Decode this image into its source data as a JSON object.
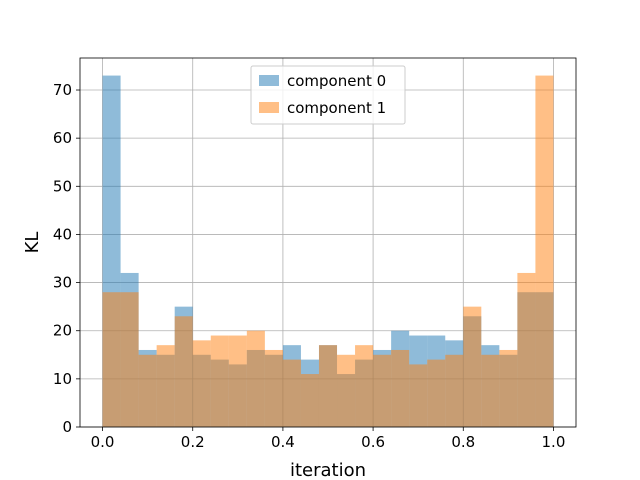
{
  "chart_data": {
    "type": "bar",
    "histogram": true,
    "bin_edges": [
      0.0,
      0.04,
      0.08,
      0.12,
      0.16,
      0.2,
      0.24,
      0.28,
      0.32,
      0.36,
      0.4,
      0.44,
      0.48,
      0.52,
      0.56,
      0.6,
      0.64,
      0.68,
      0.72,
      0.76,
      0.8,
      0.84,
      0.88,
      0.92,
      0.96,
      1.0
    ],
    "series": [
      {
        "name": "component 0",
        "color": "#1f77b4",
        "opacity": 0.5,
        "values": [
          73,
          32,
          16,
          15,
          25,
          15,
          14,
          13,
          16,
          15,
          17,
          14,
          17,
          11,
          14,
          16,
          20,
          19,
          19,
          18,
          23,
          17,
          15,
          28,
          28
        ]
      },
      {
        "name": "component 1",
        "color": "#ff7f0e",
        "opacity": 0.5,
        "values": [
          28,
          28,
          15,
          17,
          23,
          18,
          19,
          19,
          20,
          16,
          14,
          11,
          17,
          15,
          17,
          15,
          16,
          13,
          14,
          15,
          25,
          15,
          16,
          32,
          73
        ]
      }
    ],
    "xlabel": "iteration",
    "ylabel": "KL",
    "xlim": [
      -0.05,
      1.05
    ],
    "ylim": [
      0,
      76.65
    ],
    "xticks": [
      0.0,
      0.2,
      0.4,
      0.6,
      0.8,
      1.0
    ],
    "xtick_labels": [
      "0.0",
      "0.2",
      "0.4",
      "0.6",
      "0.8",
      "1.0"
    ],
    "yticks": [
      0,
      10,
      20,
      30,
      40,
      50,
      60,
      70
    ],
    "ytick_labels": [
      "0",
      "10",
      "20",
      "30",
      "40",
      "50",
      "60",
      "70"
    ],
    "grid": true,
    "legend_position": "upper-center"
  }
}
